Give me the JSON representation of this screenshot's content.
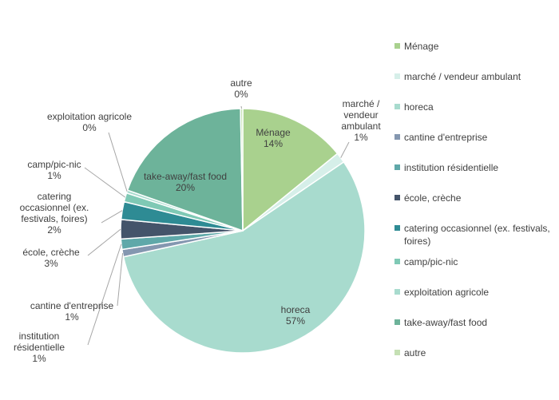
{
  "chart_data": {
    "type": "pie",
    "title": "",
    "slices": [
      {
        "label": "Ménage",
        "label_lines": [
          "Ménage"
        ],
        "percent_label": "14%",
        "value": 14.4,
        "color": "#a9d18e"
      },
      {
        "label": "marché / vendeur ambulant",
        "label_lines": [
          "marché /",
          "vendeur",
          "ambulant"
        ],
        "percent_label": "1%",
        "value": 1.4,
        "color": "#d6efe9"
      },
      {
        "label": "horeca",
        "label_lines": [
          "horeca"
        ],
        "percent_label": "57%",
        "value": 57.2,
        "color": "#a8dbce"
      },
      {
        "label": "cantine d'entreprise",
        "label_lines": [
          "cantine d'entreprise"
        ],
        "percent_label": "1%",
        "value": 1.0,
        "color": "#8497b0"
      },
      {
        "label": "institution résidentielle",
        "label_lines": [
          "institution",
          "résidentielle"
        ],
        "percent_label": "1%",
        "value": 1.4,
        "color": "#5fa8a9"
      },
      {
        "label": "école, crèche",
        "label_lines": [
          "école, crèche"
        ],
        "percent_label": "3%",
        "value": 2.6,
        "color": "#44546a"
      },
      {
        "label": "catering occasionnel (ex. festivals, foires)",
        "label_lines": [
          "catering",
          "occasionnel (ex.",
          "festivals, foires)"
        ],
        "percent_label": "2%",
        "value": 2.4,
        "color": "#2e8b94"
      },
      {
        "label": "camp/pic-nic",
        "label_lines": [
          "camp/pic-nic"
        ],
        "percent_label": "1%",
        "value": 1.2,
        "color": "#7fc9b5"
      },
      {
        "label": "exploitation agricole",
        "label_lines": [
          "exploitation agricole"
        ],
        "percent_label": "0%",
        "value": 0.4,
        "color": "#a8dbce"
      },
      {
        "label": "take-away/fast food",
        "label_lines": [
          "take-away/fast food"
        ],
        "percent_label": "20%",
        "value": 19.7,
        "color": "#6db39a"
      },
      {
        "label": "autre",
        "label_lines": [
          "autre"
        ],
        "percent_label": "0%",
        "value": 0.3,
        "color": "#c5e0b4"
      }
    ],
    "legend": {
      "position": "right",
      "items": [
        {
          "label_lines": [
            "Ménage"
          ],
          "color": "#a9d18e"
        },
        {
          "label_lines": [
            "marché / vendeur ambulant"
          ],
          "color": "#d6efe9"
        },
        {
          "label_lines": [
            "horeca"
          ],
          "color": "#a8dbce"
        },
        {
          "label_lines": [
            "cantine d'entreprise"
          ],
          "color": "#8497b0"
        },
        {
          "label_lines": [
            "institution résidentielle"
          ],
          "color": "#5fa8a9"
        },
        {
          "label_lines": [
            "école, crèche"
          ],
          "color": "#44546a"
        },
        {
          "label_lines": [
            "catering occasionnel (ex. festivals,",
            "foires)"
          ],
          "color": "#2e8b94"
        },
        {
          "label_lines": [
            "camp/pic-nic"
          ],
          "color": "#7fc9b5"
        },
        {
          "label_lines": [
            "exploitation agricole"
          ],
          "color": "#a8dbce"
        },
        {
          "label_lines": [
            "take-away/fast food"
          ],
          "color": "#6db39a"
        },
        {
          "label_lines": [
            "autre"
          ],
          "color": "#c5e0b4"
        }
      ]
    }
  }
}
